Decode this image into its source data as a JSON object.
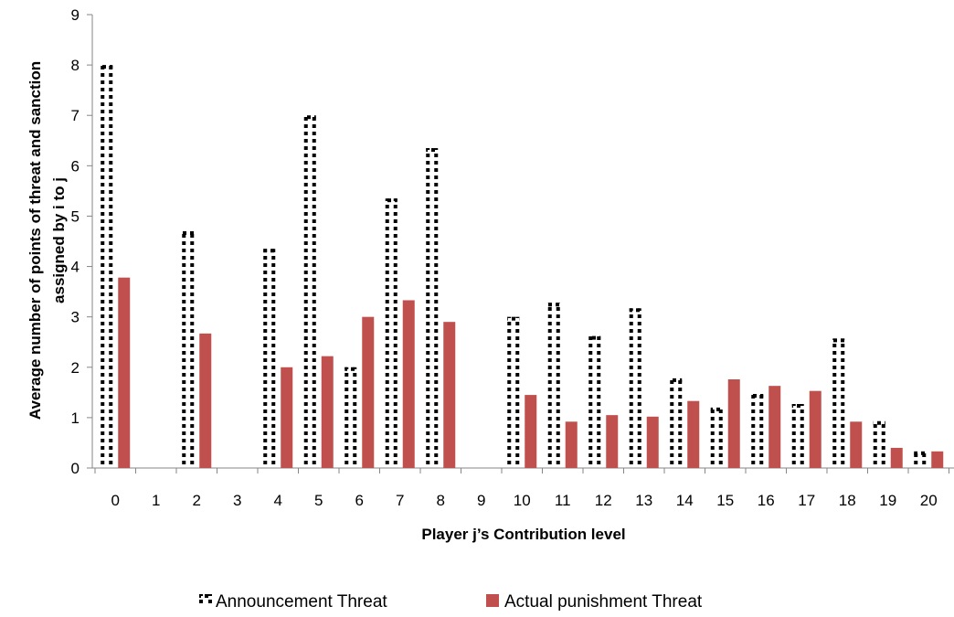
{
  "chart_data": {
    "type": "bar",
    "xlabel": "Player j’s Contribution level",
    "ylabel": "Average number of points of threat and sanction assigned by  i to  j",
    "ylabel_lines": [
      "Average number of points of threat and sanction",
      "assigned by  i to  j"
    ],
    "ylim": [
      0,
      9
    ],
    "yticks": [
      0,
      1,
      2,
      3,
      4,
      5,
      6,
      7,
      8,
      9
    ],
    "grid": false,
    "legend_position": "bottom",
    "categories": [
      "0",
      "1",
      "2",
      "3",
      "4",
      "5",
      "6",
      "7",
      "8",
      "9",
      "10",
      "11",
      "12",
      "13",
      "14",
      "15",
      "16",
      "17",
      "18",
      "19",
      "20"
    ],
    "series": [
      {
        "name": "Announcement Threat",
        "color": "#000000",
        "pattern": "dotted-outline",
        "values": [
          8.0,
          0,
          4.7,
          0,
          4.35,
          7.0,
          2.0,
          5.35,
          6.35,
          0,
          3.0,
          3.28,
          2.62,
          3.17,
          1.78,
          1.2,
          1.47,
          1.27,
          2.57,
          0.93,
          0.33
        ]
      },
      {
        "name": "Actual punishment Threat",
        "color": "#C0504D",
        "pattern": "solid",
        "values": [
          3.78,
          0,
          2.67,
          0,
          2.0,
          2.22,
          3.0,
          3.33,
          2.9,
          0,
          1.45,
          0.92,
          1.05,
          1.02,
          1.33,
          1.76,
          1.63,
          1.53,
          0.92,
          0.4,
          0.33
        ]
      }
    ]
  }
}
